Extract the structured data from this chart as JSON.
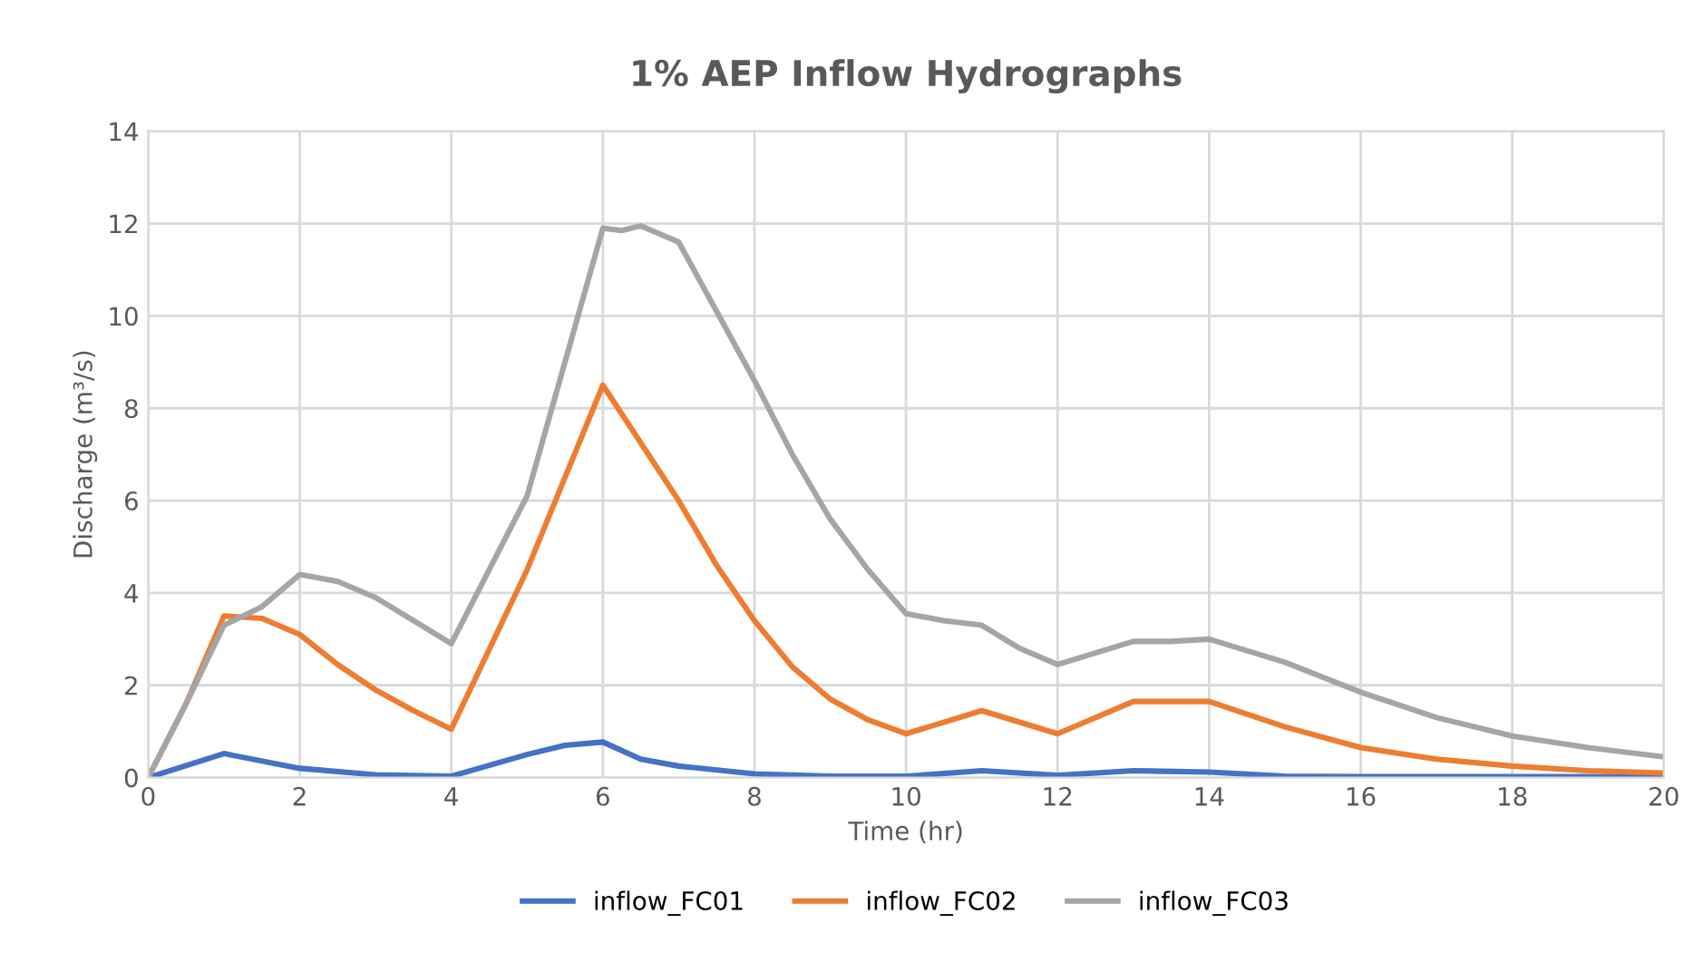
{
  "chart_data": {
    "type": "line",
    "title": "1% AEP Inflow Hydrographs",
    "xlabel": "Time (hr)",
    "ylabel": "Discharge (m³/s)",
    "xlim": [
      0,
      20
    ],
    "xticks": [
      0,
      2,
      4,
      6,
      8,
      10,
      12,
      14,
      16,
      18,
      20
    ],
    "ylim": [
      0,
      14
    ],
    "yticks": [
      0,
      2,
      4,
      6,
      8,
      10,
      12,
      14
    ],
    "grid": true,
    "legend": "bottom",
    "marker": "none",
    "line_style": "solid",
    "series": [
      {
        "name": "inflow_FC01",
        "color": "#4472c4",
        "x": [
          0,
          1,
          2,
          3,
          4,
          5,
          5.5,
          6,
          6.5,
          7,
          8,
          9,
          10,
          11,
          12,
          13,
          14,
          15,
          16,
          20
        ],
        "values": [
          0,
          0.52,
          0.2,
          0.06,
          0.03,
          0.5,
          0.7,
          0.77,
          0.4,
          0.25,
          0.08,
          0.03,
          0.03,
          0.15,
          0.05,
          0.15,
          0.12,
          0.03,
          0.02,
          0.02
        ]
      },
      {
        "name": "inflow_FC02",
        "color": "#ed7d31",
        "x": [
          0,
          0.5,
          1,
          1.5,
          2,
          2.5,
          3,
          3.5,
          4,
          5,
          6,
          7,
          7.5,
          8,
          8.5,
          9,
          9.5,
          10,
          11,
          12,
          13,
          14,
          15,
          16,
          17,
          18,
          19,
          20
        ],
        "values": [
          0,
          1.6,
          3.5,
          3.45,
          3.1,
          2.45,
          1.9,
          1.45,
          1.05,
          4.5,
          8.5,
          6.0,
          4.6,
          3.4,
          2.4,
          1.7,
          1.25,
          0.95,
          1.45,
          0.95,
          1.65,
          1.65,
          1.1,
          0.65,
          0.4,
          0.25,
          0.15,
          0.1
        ]
      },
      {
        "name": "inflow_FC03",
        "color": "#a5a5a5",
        "x": [
          0,
          0.5,
          1,
          1.5,
          2,
          2.5,
          3,
          3.5,
          4,
          4.5,
          5,
          5.5,
          6,
          6.25,
          6.5,
          7,
          7.5,
          8,
          8.5,
          9,
          9.5,
          10,
          10.5,
          11,
          11.5,
          12,
          12.5,
          13,
          13.5,
          14,
          15,
          16,
          17,
          18,
          19,
          20
        ],
        "values": [
          0,
          1.6,
          3.3,
          3.7,
          4.4,
          4.25,
          3.9,
          3.4,
          2.9,
          4.5,
          6.1,
          9.0,
          11.9,
          11.85,
          11.95,
          11.6,
          10.1,
          8.6,
          7.0,
          5.6,
          4.5,
          3.55,
          3.4,
          3.3,
          2.8,
          2.45,
          2.7,
          2.95,
          2.95,
          3.0,
          2.5,
          1.85,
          1.3,
          0.9,
          0.65,
          0.45
        ]
      }
    ]
  }
}
